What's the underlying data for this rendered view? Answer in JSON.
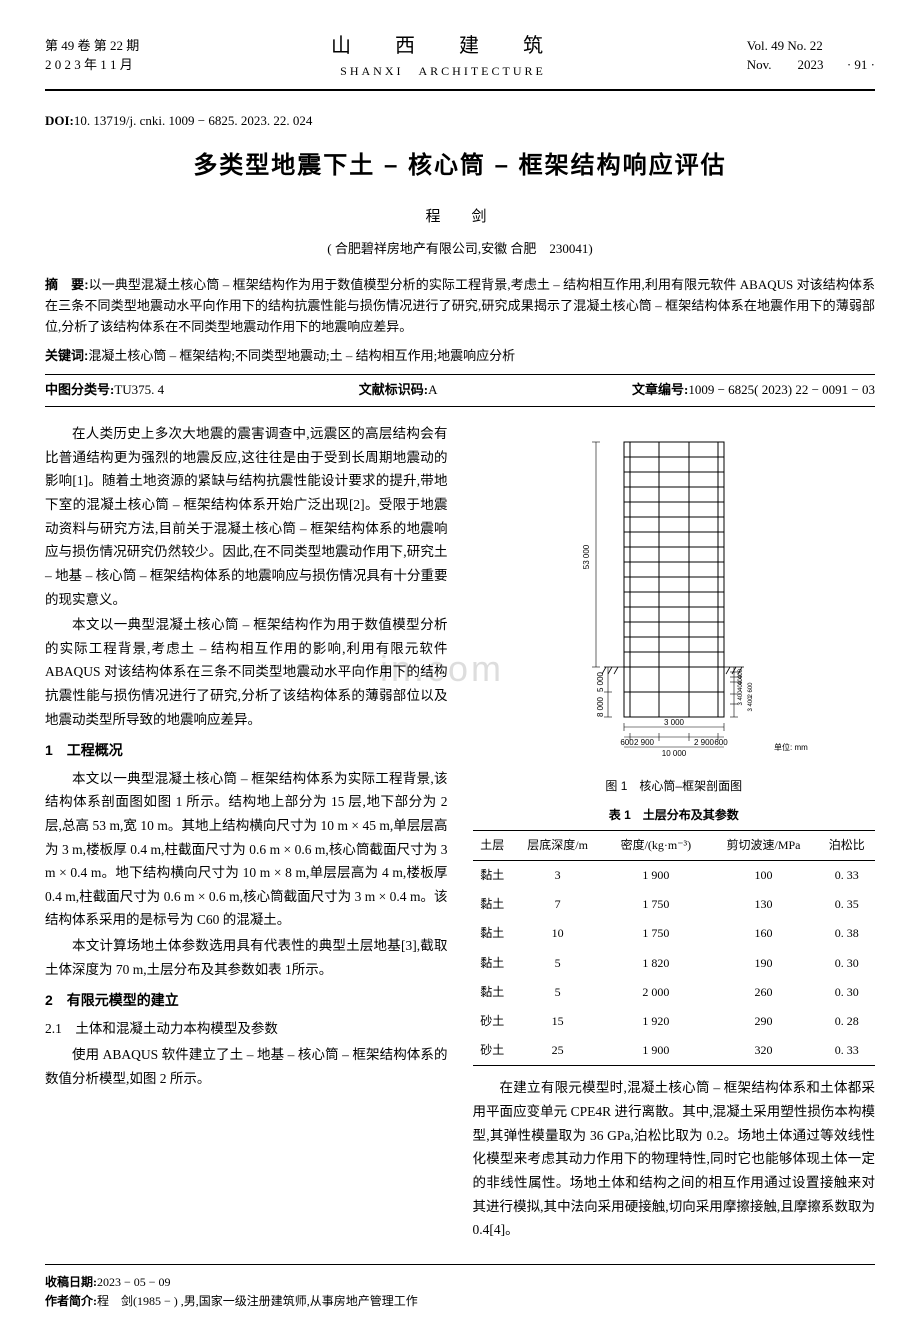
{
  "header": {
    "vol_cn": "第 49 卷 第 22 期",
    "date_cn": "2 0 2 3 年 1 1 月",
    "journal_cn": "山　西　建　筑",
    "journal_en": "SHANXI　ARCHITECTURE",
    "vol_en": "Vol. 49 No. 22",
    "date_en": "Nov.　　2023",
    "page": "· 91 ·"
  },
  "doi": {
    "label": "DOI:",
    "value": "10. 13719/j. cnki. 1009 − 6825. 2023. 22. 024"
  },
  "title": "多类型地震下土 – 核心筒 – 框架结构响应评估",
  "author": "程　剑",
  "affiliation": "( 合肥碧祥房地产有限公司,安徽 合肥　230041)",
  "abstract": {
    "label": "摘　要:",
    "text": "以一典型混凝土核心筒 – 框架结构作为用于数值模型分析的实际工程背景,考虑土 – 结构相互作用,利用有限元软件 ABAQUS 对该结构体系在三条不同类型地震动水平向作用下的结构抗震性能与损伤情况进行了研究,研究成果揭示了混凝土核心筒 – 框架结构体系在地震作用下的薄弱部位,分析了该结构体系在不同类型地震动作用下的地震响应差异。"
  },
  "keywords": {
    "label": "关键词:",
    "text": "混凝土核心筒 – 框架结构;不同类型地震动;土 – 结构相互作用;地震响应分析"
  },
  "classification": {
    "clc_label": "中图分类号:",
    "clc": "TU375. 4",
    "doccode_label": "文献标识码:",
    "doccode": "A",
    "article_id_label": "文章编号:",
    "article_id": "1009 − 6825( 2023) 22 − 0091 − 03"
  },
  "body": {
    "p1": "在人类历史上多次大地震的震害调查中,远震区的高层结构会有比普通结构更为强烈的地震反应,这往往是由于受到长周期地震动的影响[1]。随着土地资源的紧缺与结构抗震性能设计要求的提升,带地下室的混凝土核心筒 – 框架结构体系开始广泛出现[2]。受限于地震动资料与研究方法,目前关于混凝土核心筒 – 框架结构体系的地震响应与损伤情况研究仍然较少。因此,在不同类型地震动作用下,研究土 – 地基 – 核心筒 – 框架结构体系的地震响应与损伤情况具有十分重要的现实意义。",
    "p2": "本文以一典型混凝土核心筒 – 框架结构作为用于数值模型分析的实际工程背景,考虑土 – 结构相互作用的影响,利用有限元软件 ABAQUS 对该结构体系在三条不同类型地震动水平向作用下的结构抗震性能与损伤情况进行了研究,分析了该结构体系的薄弱部位以及地震动类型所导致的地震响应差异。",
    "s1": "1　工程概况",
    "p3": "本文以一典型混凝土核心筒 – 框架结构体系为实际工程背景,该结构体系剖面图如图 1 所示。结构地上部分为 15 层,地下部分为 2 层,总高 53 m,宽 10 m。其地上结构横向尺寸为 10 m × 45 m,单层层高为 3 m,楼板厚 0.4 m,柱截面尺寸为 0.6 m × 0.6 m,核心筒截面尺寸为 3 m × 0.4 m。地下结构横向尺寸为 10 m × 8 m,单层层高为 4 m,楼板厚 0.4 m,柱截面尺寸为 0.6 m × 0.6 m,核心筒截面尺寸为 3 m × 0.4 m。该结构体系采用的是标号为 C60 的混凝土。",
    "p4": "本文计算场地土体参数选用具有代表性的典型土层地基[3],截取土体深度为 70 m,土层分布及其参数如表 1所示。",
    "s2": "2　有限元模型的建立",
    "s21": "2.1　土体和混凝土动力本构模型及参数",
    "p5": "使用 ABAQUS 软件建立了土 – 地基 – 核心筒 – 框架结构体系的数值分析模型,如图 2 所示。",
    "p6": "在建立有限元模型时,混凝土核心筒 – 框架结构体系和土体都采用平面应变单元 CPE4R 进行离散。其中,混凝土采用塑性损伤本构模型,其弹性模量取为 36 GPa,泊松比取为 0.2。场地土体通过等效线性化模型来考虑其动力作用下的物理特性,同时它也能够体现土体一定的非线性属性。场地土体和结构之间的相互作用通过设置接触来对其进行模拟,其中法向采用硬接触,切向采用摩擦接触,且摩擦系数取为 0.4[4]。"
  },
  "figure1": {
    "caption": "图 1　核心筒–框架剖面图",
    "unit_label": "单位: mm",
    "dims": {
      "total_height": "53 000",
      "basement_upper": "5 000",
      "basement_lower": "8 000",
      "width_total": "10 000",
      "width_outer": "3 000",
      "col_left": "600",
      "bay_left": "2 900",
      "bay_right": "2 900",
      "col_right": "600",
      "right_stack": [
        "400",
        "400",
        "400",
        "3 400",
        "2 600",
        "3 400"
      ]
    },
    "colors": {
      "line": "#000000",
      "hatch": "#000000"
    }
  },
  "table1": {
    "caption": "表 1　土层分布及其参数",
    "columns": [
      "土层",
      "层底深度/m",
      "密度/(kg·m⁻³)",
      "剪切波速/MPa",
      "泊松比"
    ],
    "rows": [
      [
        "黏土",
        "3",
        "1 900",
        "100",
        "0. 33"
      ],
      [
        "黏土",
        "7",
        "1 750",
        "130",
        "0. 35"
      ],
      [
        "黏土",
        "10",
        "1 750",
        "160",
        "0. 38"
      ],
      [
        "黏土",
        "5",
        "1 820",
        "190",
        "0. 30"
      ],
      [
        "黏土",
        "5",
        "2 000",
        "260",
        "0. 30"
      ],
      [
        "砂土",
        "15",
        "1 920",
        "290",
        "0. 28"
      ],
      [
        "砂土",
        "25",
        "1 900",
        "320",
        "0. 33"
      ]
    ]
  },
  "footer": {
    "received_label": "收稿日期:",
    "received": "2023 − 05 − 09",
    "author_bio_label": "作者简介:",
    "author_bio": "程　剑(1985 − ) ,男,国家一级注册建筑师,从事房地产管理工作"
  },
  "watermark": "in.com"
}
